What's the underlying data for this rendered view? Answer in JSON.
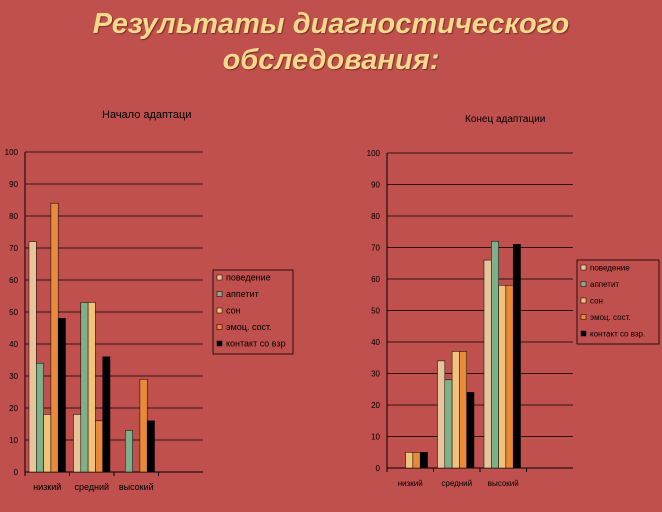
{
  "slide": {
    "title_line1": "Результаты диагностического",
    "title_line2": "обследования:"
  },
  "colors": {
    "background": "#c0504d",
    "title": "#f7d98b",
    "gridline": "#000000"
  },
  "chart_data": [
    {
      "type": "bar",
      "title": "Начало адаптаци",
      "categories": [
        "низкий",
        "средний",
        "высокий"
      ],
      "ylim": [
        0,
        100
      ],
      "yticks": [
        0,
        10,
        20,
        30,
        40,
        50,
        60,
        70,
        80,
        90,
        100
      ],
      "grid": true,
      "legend_position": "right",
      "series": [
        {
          "name": "поведение",
          "color": "#e6c59a",
          "values": [
            72,
            18,
            0
          ]
        },
        {
          "name": "аппетит",
          "color": "#7fb08a",
          "values": [
            34,
            53,
            13
          ]
        },
        {
          "name": "сон",
          "color": "#f2c27a",
          "values": [
            18,
            53,
            0
          ]
        },
        {
          "name": "эмоц. сост.",
          "color": "#e98a3a",
          "values": [
            84,
            16,
            29
          ]
        },
        {
          "name": "контакт со взр",
          "color": "#000000",
          "values": [
            48,
            36,
            16
          ]
        }
      ]
    },
    {
      "type": "bar",
      "title": "Конец адаптации",
      "categories": [
        "низкий",
        "средний",
        "высокий"
      ],
      "ylim": [
        0,
        100
      ],
      "yticks": [
        0,
        10,
        20,
        30,
        40,
        50,
        60,
        70,
        80,
        90,
        100
      ],
      "grid": true,
      "legend_position": "right",
      "series": [
        {
          "name": "поведение",
          "color": "#e6c59a",
          "values": [
            0,
            34,
            66
          ]
        },
        {
          "name": "аппетит",
          "color": "#7fb08a",
          "values": [
            0,
            28,
            72
          ]
        },
        {
          "name": "сон",
          "color": "#f2c27a",
          "values": [
            5,
            37,
            58
          ]
        },
        {
          "name": "эмоц. сост.",
          "color": "#e98a3a",
          "values": [
            5,
            37,
            58
          ]
        },
        {
          "name": "контакт со взр.",
          "color": "#000000",
          "values": [
            5,
            24,
            71
          ]
        }
      ]
    }
  ]
}
